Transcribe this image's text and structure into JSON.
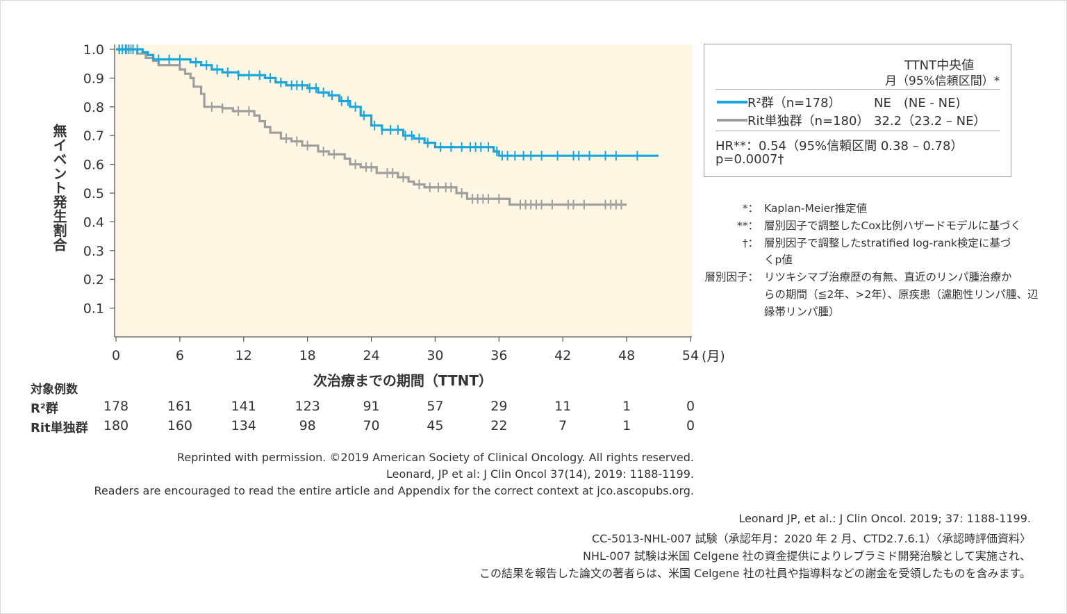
{
  "chart_data": {
    "type": "line",
    "title": "",
    "xlabel": "次治療までの期間（TTNT）",
    "x_unit": "(月)",
    "ylabel": "無イベント発生割合",
    "xlim": [
      0,
      54
    ],
    "ylim": [
      0,
      1.0
    ],
    "x_ticks": [
      "0",
      "6",
      "12",
      "18",
      "24",
      "30",
      "36",
      "42",
      "48",
      "54"
    ],
    "y_ticks": [
      "1.0",
      "0.9",
      "0.8",
      "0.7",
      "0.6",
      "0.5",
      "0.4",
      "0.3",
      "0.2",
      "0.1"
    ],
    "series": [
      {
        "name": "R²群 (n=178)",
        "color": "#1aa6dc",
        "steps": [
          [
            0,
            1.0
          ],
          [
            2.5,
            0.99
          ],
          [
            3,
            0.98
          ],
          [
            3.5,
            0.965
          ],
          [
            7,
            0.955
          ],
          [
            8,
            0.945
          ],
          [
            9,
            0.93
          ],
          [
            10,
            0.92
          ],
          [
            11.5,
            0.91
          ],
          [
            14,
            0.9
          ],
          [
            15,
            0.885
          ],
          [
            16,
            0.875
          ],
          [
            18,
            0.865
          ],
          [
            19,
            0.85
          ],
          [
            20,
            0.84
          ],
          [
            21,
            0.82
          ],
          [
            22,
            0.8
          ],
          [
            23,
            0.77
          ],
          [
            24,
            0.735
          ],
          [
            25,
            0.72
          ],
          [
            27,
            0.7
          ],
          [
            28,
            0.69
          ],
          [
            29,
            0.675
          ],
          [
            30,
            0.66
          ],
          [
            35.5,
            0.645
          ],
          [
            36,
            0.63
          ],
          [
            51,
            0.63
          ]
        ],
        "censor_x": [
          0.3,
          0.6,
          0.9,
          1.2,
          1.6,
          2.0,
          4,
          5,
          6,
          7.5,
          8.5,
          9.5,
          10.5,
          11.5,
          12.5,
          13.5,
          14.5,
          15.5,
          16.5,
          17,
          17.5,
          18.2,
          18.8,
          19.5,
          20.3,
          21.2,
          21.8,
          22.5,
          23.3,
          24.3,
          25,
          25.8,
          26.5,
          27.2,
          27.8,
          28.5,
          29.3,
          30.5,
          31.5,
          32.5,
          33.3,
          33.8,
          34.3,
          35,
          35.8,
          36.3,
          36.8,
          37.5,
          38.3,
          39,
          40,
          41.5,
          43,
          43.5,
          44.5,
          46,
          47,
          49
        ]
      },
      {
        "name": "Rit単独群 (n=180)",
        "color": "#9e9e9e",
        "steps": [
          [
            0,
            1.0
          ],
          [
            2,
            0.985
          ],
          [
            2.8,
            0.97
          ],
          [
            3.5,
            0.96
          ],
          [
            4,
            0.945
          ],
          [
            6,
            0.93
          ],
          [
            6.5,
            0.915
          ],
          [
            7,
            0.9
          ],
          [
            7.3,
            0.87
          ],
          [
            8,
            0.845
          ],
          [
            8.3,
            0.8
          ],
          [
            10,
            0.795
          ],
          [
            11,
            0.785
          ],
          [
            13,
            0.77
          ],
          [
            13.5,
            0.75
          ],
          [
            14,
            0.73
          ],
          [
            14.5,
            0.71
          ],
          [
            15.5,
            0.69
          ],
          [
            16.5,
            0.68
          ],
          [
            17.5,
            0.665
          ],
          [
            19,
            0.645
          ],
          [
            20,
            0.635
          ],
          [
            21.5,
            0.62
          ],
          [
            22,
            0.6
          ],
          [
            23,
            0.59
          ],
          [
            24.5,
            0.57
          ],
          [
            26.5,
            0.555
          ],
          [
            27.5,
            0.54
          ],
          [
            28,
            0.53
          ],
          [
            29,
            0.52
          ],
          [
            32,
            0.5
          ],
          [
            33,
            0.48
          ],
          [
            37,
            0.46
          ],
          [
            48,
            0.46
          ]
        ],
        "censor_x": [
          0.3,
          0.6,
          1.0,
          1.4,
          9,
          10,
          11.5,
          12.5,
          16,
          17,
          18,
          19.5,
          20.5,
          22.5,
          23.5,
          24,
          25.5,
          26,
          27,
          28.5,
          29.5,
          30.3,
          31,
          31.5,
          32.5,
          33.5,
          34,
          34.5,
          35,
          36,
          38,
          38.5,
          39,
          39.5,
          40,
          41,
          42.5,
          43,
          44,
          46,
          46.5,
          47,
          47.5
        ]
      }
    ],
    "risk_table": {
      "header": "対象例数",
      "rows": [
        {
          "label": "R²群",
          "values": [
            "178",
            "161",
            "141",
            "123",
            "91",
            "57",
            "29",
            "11",
            "1",
            "0"
          ]
        },
        {
          "label": "Rit単独群",
          "values": [
            "180",
            "160",
            "134",
            "98",
            "70",
            "45",
            "22",
            "7",
            "1",
            "0"
          ]
        }
      ]
    }
  },
  "legend": {
    "head1": "TTNT中央値",
    "head2": "月（95%信頼区間）*",
    "r2_label": "R²群（n=178）",
    "r2_value": "NE　(NE - NE)",
    "rit_label": "Rit単独群（n=180）",
    "rit_value": "32.2（23.2 – NE）",
    "hr": "HR**：0.54（95%信頼区間  0.38 – 0.78）",
    "p": "p=0.0007†"
  },
  "notes": [
    {
      "mark": "*：",
      "text": "Kaplan-Meier推定値"
    },
    {
      "mark": "**：",
      "text": "層別因子で調整したCox比例ハザードモデルに基づく"
    },
    {
      "mark": "†：",
      "text": "層別因子で調整したstratified log-rank検定に基づ"
    },
    {
      "mark": "",
      "text": "くp値"
    },
    {
      "mark": "層別因子：",
      "text": "リツキシマブ治療歴の有無、直近のリンパ腫治療か"
    },
    {
      "mark": "",
      "text": "らの期間（≦2年、>2年）、原疾患（濾胞性リンパ腫、辺"
    },
    {
      "mark": "",
      "text": "縁帯リンパ腫）"
    }
  ],
  "reprint": [
    "Reprinted with permission. ©2019 American Society of Clinical Oncology. All rights reserved.",
    "Leonard, JP et al: J Clin Oncol 37(14), 2019: 1188-1199.",
    "Readers are encouraged to read the entire article and Appendix for the correct context at jco.ascopubs.org."
  ],
  "source": [
    "Leonard JP, et al.: J Clin Oncol. 2019; 37: 1188-1199.",
    "CC-5013-NHL-007 試験（承認年月：2020 年 2 月、CTD2.7.6.1）〈承認時評価資料〉",
    "NHL-007 試験は米国 Celgene 社の資金提供によりレブラミド開発治験として実施され、",
    "この結果を報告した論文の著者らは、米国 Celgene 社の社員や指導料などの謝金を受領したものを含みます。"
  ]
}
